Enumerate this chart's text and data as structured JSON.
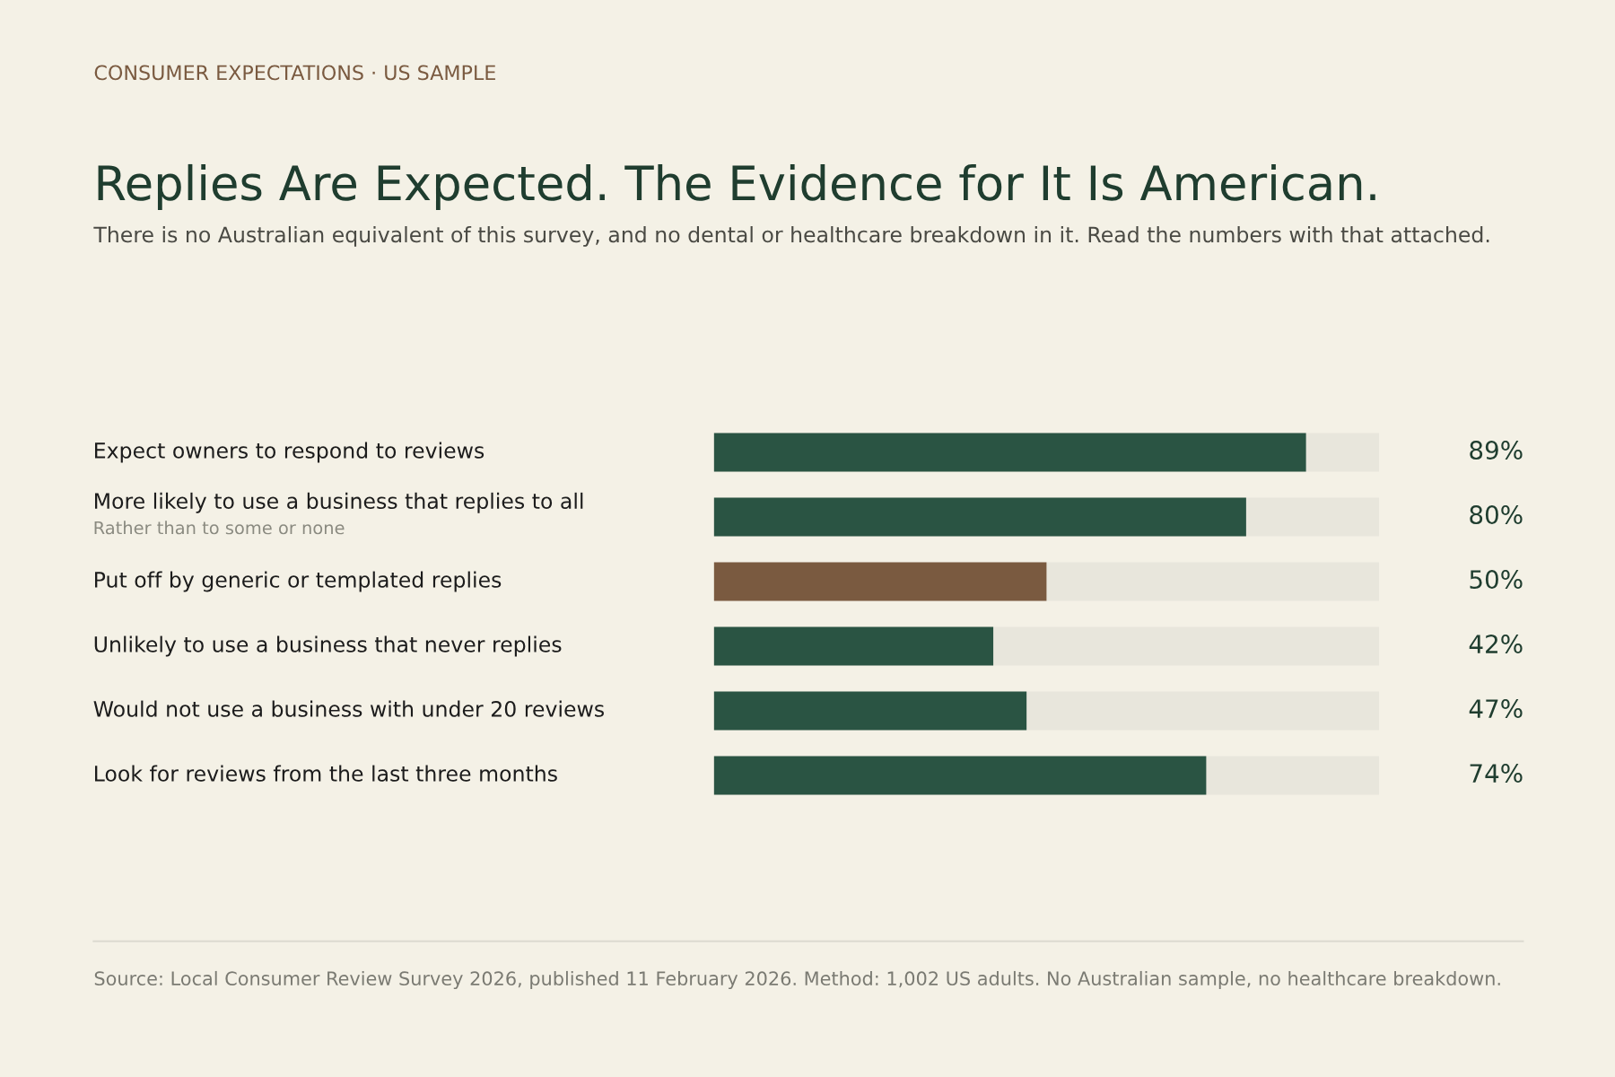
{
  "chart_data": {
    "type": "bar",
    "orientation": "horizontal",
    "title": "Replies Are Expected. The Evidence for It Is American.",
    "subtitle": "There is no Australian equivalent of this survey, and no dental or healthcare breakdown in it. Read the numbers with that attached.",
    "annotations": [
      "CONSUMER EXPECTATIONS · US SAMPLE",
      "Source: Local Consumer Review Survey 2026, published 11 February 2026. Method: 1,002 US adults. No Australian sample, no healthcare breakdown."
    ],
    "categories": [
      "Expect owners to respond to reviews",
      "More likely to use a business that replies to all\nRather than to some or none",
      "Put off by generic or templated replies",
      "Unlikely to use a business that never replies",
      "Would not use a business with under 20 reviews",
      "Look for reviews from the last three months"
    ],
    "values": [
      89,
      80,
      50,
      42,
      47,
      74
    ],
    "colors": [
      "#2a5443",
      "#2a5443",
      "#7a5a40",
      "#2a5443",
      "#2a5443",
      "#2a5443"
    ],
    "value_labels": [
      "89%",
      "80%",
      "50%",
      "42%",
      "47%",
      "74%"
    ],
    "xlim": [
      0,
      100
    ],
    "tick_labels": "y"
  }
}
